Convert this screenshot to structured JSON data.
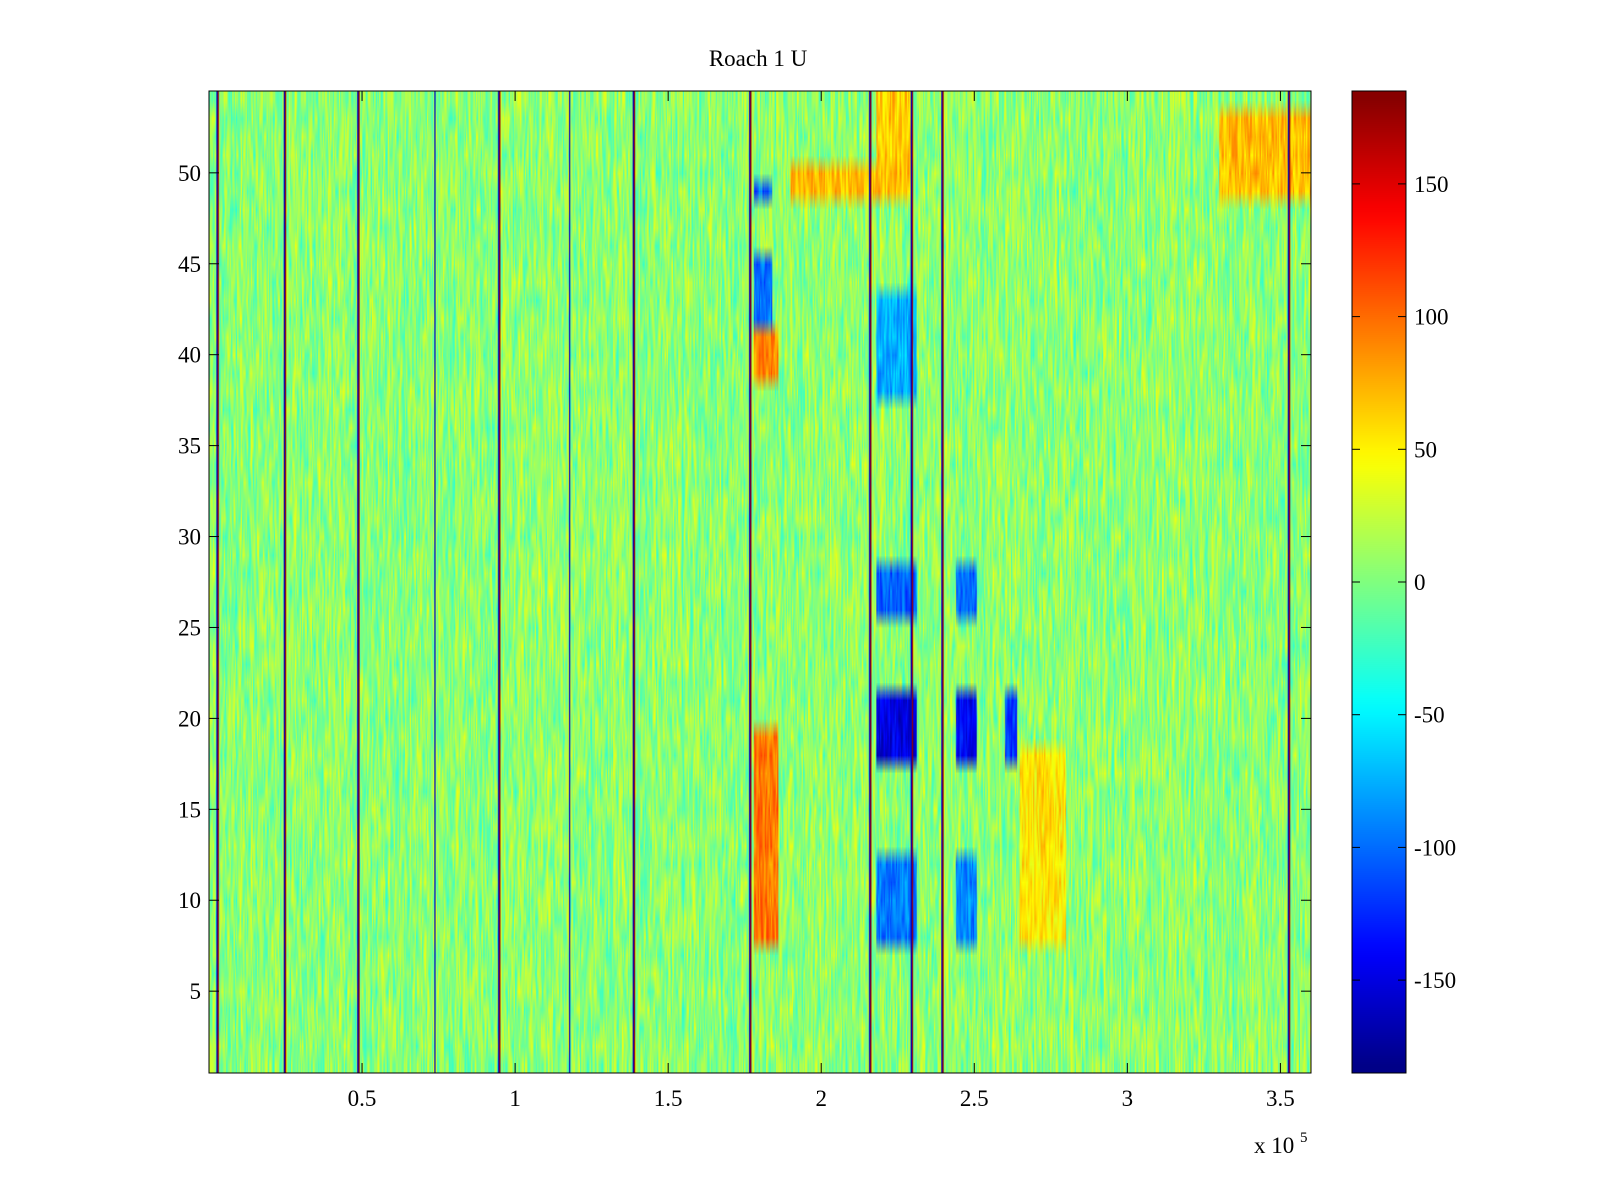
{
  "chart_data": {
    "type": "heatmap",
    "title": "Roach 1 U",
    "xlabel": "",
    "ylabel": "",
    "x_exponent_label": {
      "prefix": "x 10",
      "exponent": "5"
    },
    "xlim": [
      0,
      3.6
    ],
    "ylim": [
      0.5,
      54.5
    ],
    "x_ticks": [
      0.5,
      1,
      1.5,
      2,
      2.5,
      3,
      3.5
    ],
    "x_tick_labels": [
      "0.5",
      "1",
      "1.5",
      "2",
      "2.5",
      "3",
      "3.5"
    ],
    "y_ticks": [
      5,
      10,
      15,
      20,
      25,
      30,
      35,
      40,
      45,
      50
    ],
    "y_tick_labels": [
      "5",
      "10",
      "15",
      "20",
      "25",
      "30",
      "35",
      "40",
      "45",
      "50"
    ],
    "rows": 54,
    "colormap": "jet",
    "colorbar": {
      "clim": [
        -185,
        185
      ],
      "ticks": [
        -150,
        -100,
        -50,
        0,
        50,
        100,
        150
      ],
      "tick_labels": [
        "-150",
        "-100",
        "-50",
        "0",
        "50",
        "100",
        "150"
      ]
    },
    "background_value_range": [
      -25,
      35
    ],
    "vertical_artifact_lines_x": [
      0.03,
      0.25,
      0.49,
      0.74,
      0.95,
      1.18,
      1.39,
      1.77,
      2.16,
      2.3,
      2.4,
      3.53
    ],
    "high_value_regions": [
      {
        "x_range": [
          1.78,
          1.86
        ],
        "y_range": [
          7.5,
          19.5
        ],
        "value": 95
      },
      {
        "x_range": [
          1.78,
          1.86
        ],
        "y_range": [
          38.5,
          41.5
        ],
        "value": 90
      },
      {
        "x_range": [
          1.9,
          2.3
        ],
        "y_range": [
          48.5,
          50.5
        ],
        "value": 70
      },
      {
        "x_range": [
          2.18,
          2.3
        ],
        "y_range": [
          50.5,
          54.5
        ],
        "value": 65
      },
      {
        "x_range": [
          2.65,
          2.8
        ],
        "y_range": [
          7.5,
          18.5
        ],
        "value": 55
      },
      {
        "x_range": [
          3.3,
          3.6
        ],
        "y_range": [
          48.5,
          53.5
        ],
        "value": 70
      }
    ],
    "low_value_regions": [
      {
        "x_range": [
          2.18,
          2.31
        ],
        "y_range": [
          17.5,
          21.5
        ],
        "value": -150
      },
      {
        "x_range": [
          2.44,
          2.51
        ],
        "y_range": [
          17.5,
          21.5
        ],
        "value": -140
      },
      {
        "x_range": [
          2.6,
          2.64
        ],
        "y_range": [
          17.5,
          21.5
        ],
        "value": -115
      },
      {
        "x_range": [
          2.18,
          2.31
        ],
        "y_range": [
          25.5,
          28.5
        ],
        "value": -105
      },
      {
        "x_range": [
          2.44,
          2.51
        ],
        "y_range": [
          25.5,
          28.5
        ],
        "value": -100
      },
      {
        "x_range": [
          2.18,
          2.31
        ],
        "y_range": [
          7.5,
          12.5
        ],
        "value": -95
      },
      {
        "x_range": [
          2.44,
          2.51
        ],
        "y_range": [
          7.5,
          12.5
        ],
        "value": -90
      },
      {
        "x_range": [
          1.78,
          1.84
        ],
        "y_range": [
          41.5,
          45.5
        ],
        "value": -100
      },
      {
        "x_range": [
          1.78,
          1.84
        ],
        "y_range": [
          48.5,
          49.5
        ],
        "value": -105
      },
      {
        "x_range": [
          2.18,
          2.31
        ],
        "y_range": [
          37.5,
          43.5
        ],
        "value": -75
      }
    ]
  }
}
